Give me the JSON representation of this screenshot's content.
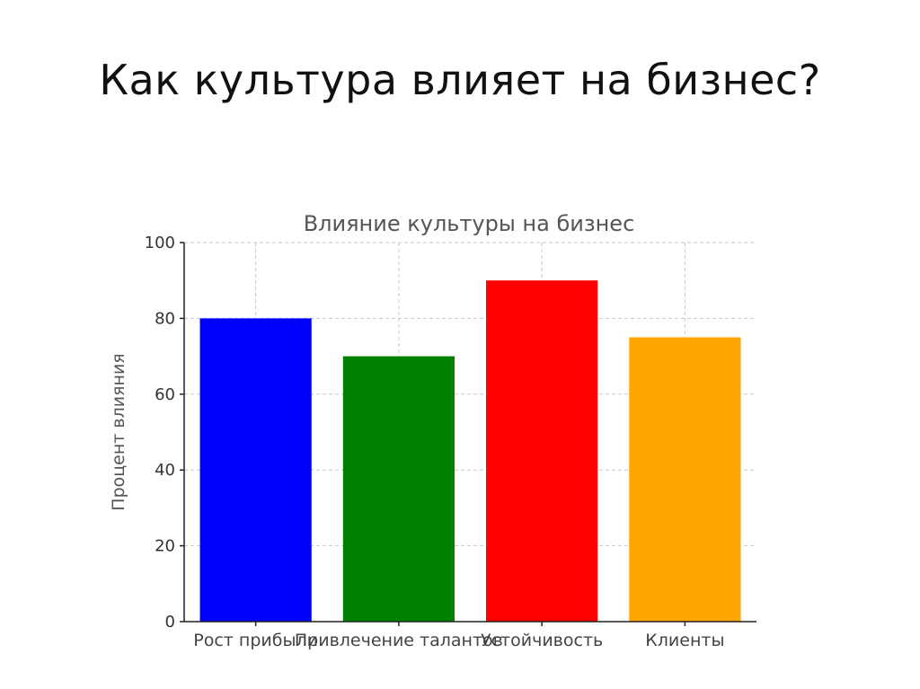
{
  "slide": {
    "title": "Как культура влияет на бизнес?"
  },
  "chart_data": {
    "type": "bar",
    "title": "Влияние культуры на бизнес",
    "xlabel": "",
    "ylabel": "Процент влияния",
    "categories": [
      "Рост прибыли",
      "Привлечение талантов",
      "Устойчивость",
      "Клиенты"
    ],
    "values": [
      80,
      70,
      90,
      75
    ],
    "colors": [
      "#0000ff",
      "#008000",
      "#ff0000",
      "#ffa500"
    ],
    "ylim": [
      0,
      100
    ],
    "yticks": [
      0,
      20,
      40,
      60,
      80,
      100
    ],
    "grid": true
  }
}
